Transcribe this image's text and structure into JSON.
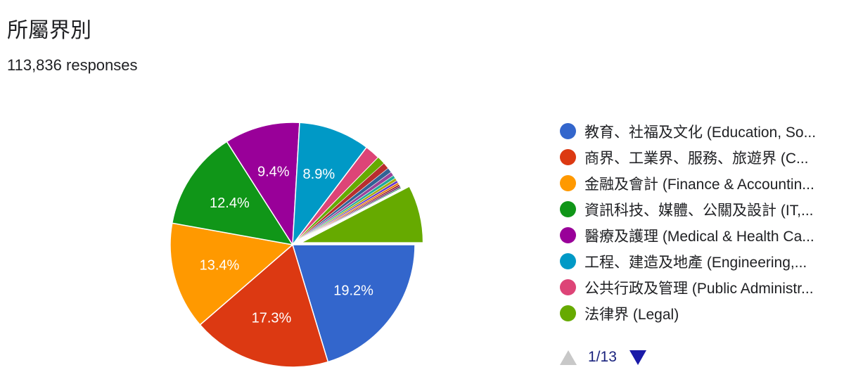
{
  "header": {
    "title": "所屬界別",
    "responses": "113,836 responses"
  },
  "pager": {
    "page_label": "1/13"
  },
  "chart_data": {
    "type": "pie",
    "title": "所屬界別",
    "total_responses": 113836,
    "slices": [
      {
        "name": "教育、社福及文化 (Education, So...",
        "value": 19.2,
        "label": "19.2%",
        "color": "#3366cc"
      },
      {
        "name": "商界、工業界、服務、旅遊界 (C...",
        "value": 17.3,
        "label": "17.3%",
        "color": "#dc3912"
      },
      {
        "name": "金融及會計 (Finance & Accountin...",
        "value": 13.4,
        "label": "13.4%",
        "color": "#ff9900"
      },
      {
        "name": "資訊科技、媒體、公關及設計 (IT,...",
        "value": 12.4,
        "label": "12.4%",
        "color": "#109618"
      },
      {
        "name": "醫療及護理 (Medical & Health Ca...",
        "value": 9.4,
        "label": "9.4%",
        "color": "#990099"
      },
      {
        "name": "工程、建造及地產 (Engineering,...",
        "value": 8.9,
        "label": "8.9%",
        "color": "#0099c6"
      },
      {
        "name": "公共行政及管理 (Public Administr...",
        "value": 1.9,
        "label": "",
        "color": "#dd4477"
      },
      {
        "name": "法律界 (Legal)",
        "value": 7.2,
        "label": "",
        "color": "#66aa00"
      }
    ],
    "minor_slices": [
      {
        "value": 1.0,
        "color": "#66aa00"
      },
      {
        "value": 0.8,
        "color": "#b82e2e"
      },
      {
        "value": 0.6,
        "color": "#316395"
      },
      {
        "value": 0.5,
        "color": "#994499"
      },
      {
        "value": 0.4,
        "color": "#22aa99"
      },
      {
        "value": 0.35,
        "color": "#aaaa11"
      },
      {
        "value": 0.3,
        "color": "#6633cc"
      },
      {
        "value": 0.25,
        "color": "#e67300"
      },
      {
        "value": 0.2,
        "color": "#8b0707"
      },
      {
        "value": 0.2,
        "color": "#651067"
      },
      {
        "value": 0.15,
        "color": "#329262"
      }
    ],
    "exploded_slice_index": 7,
    "legend_position": "right"
  }
}
